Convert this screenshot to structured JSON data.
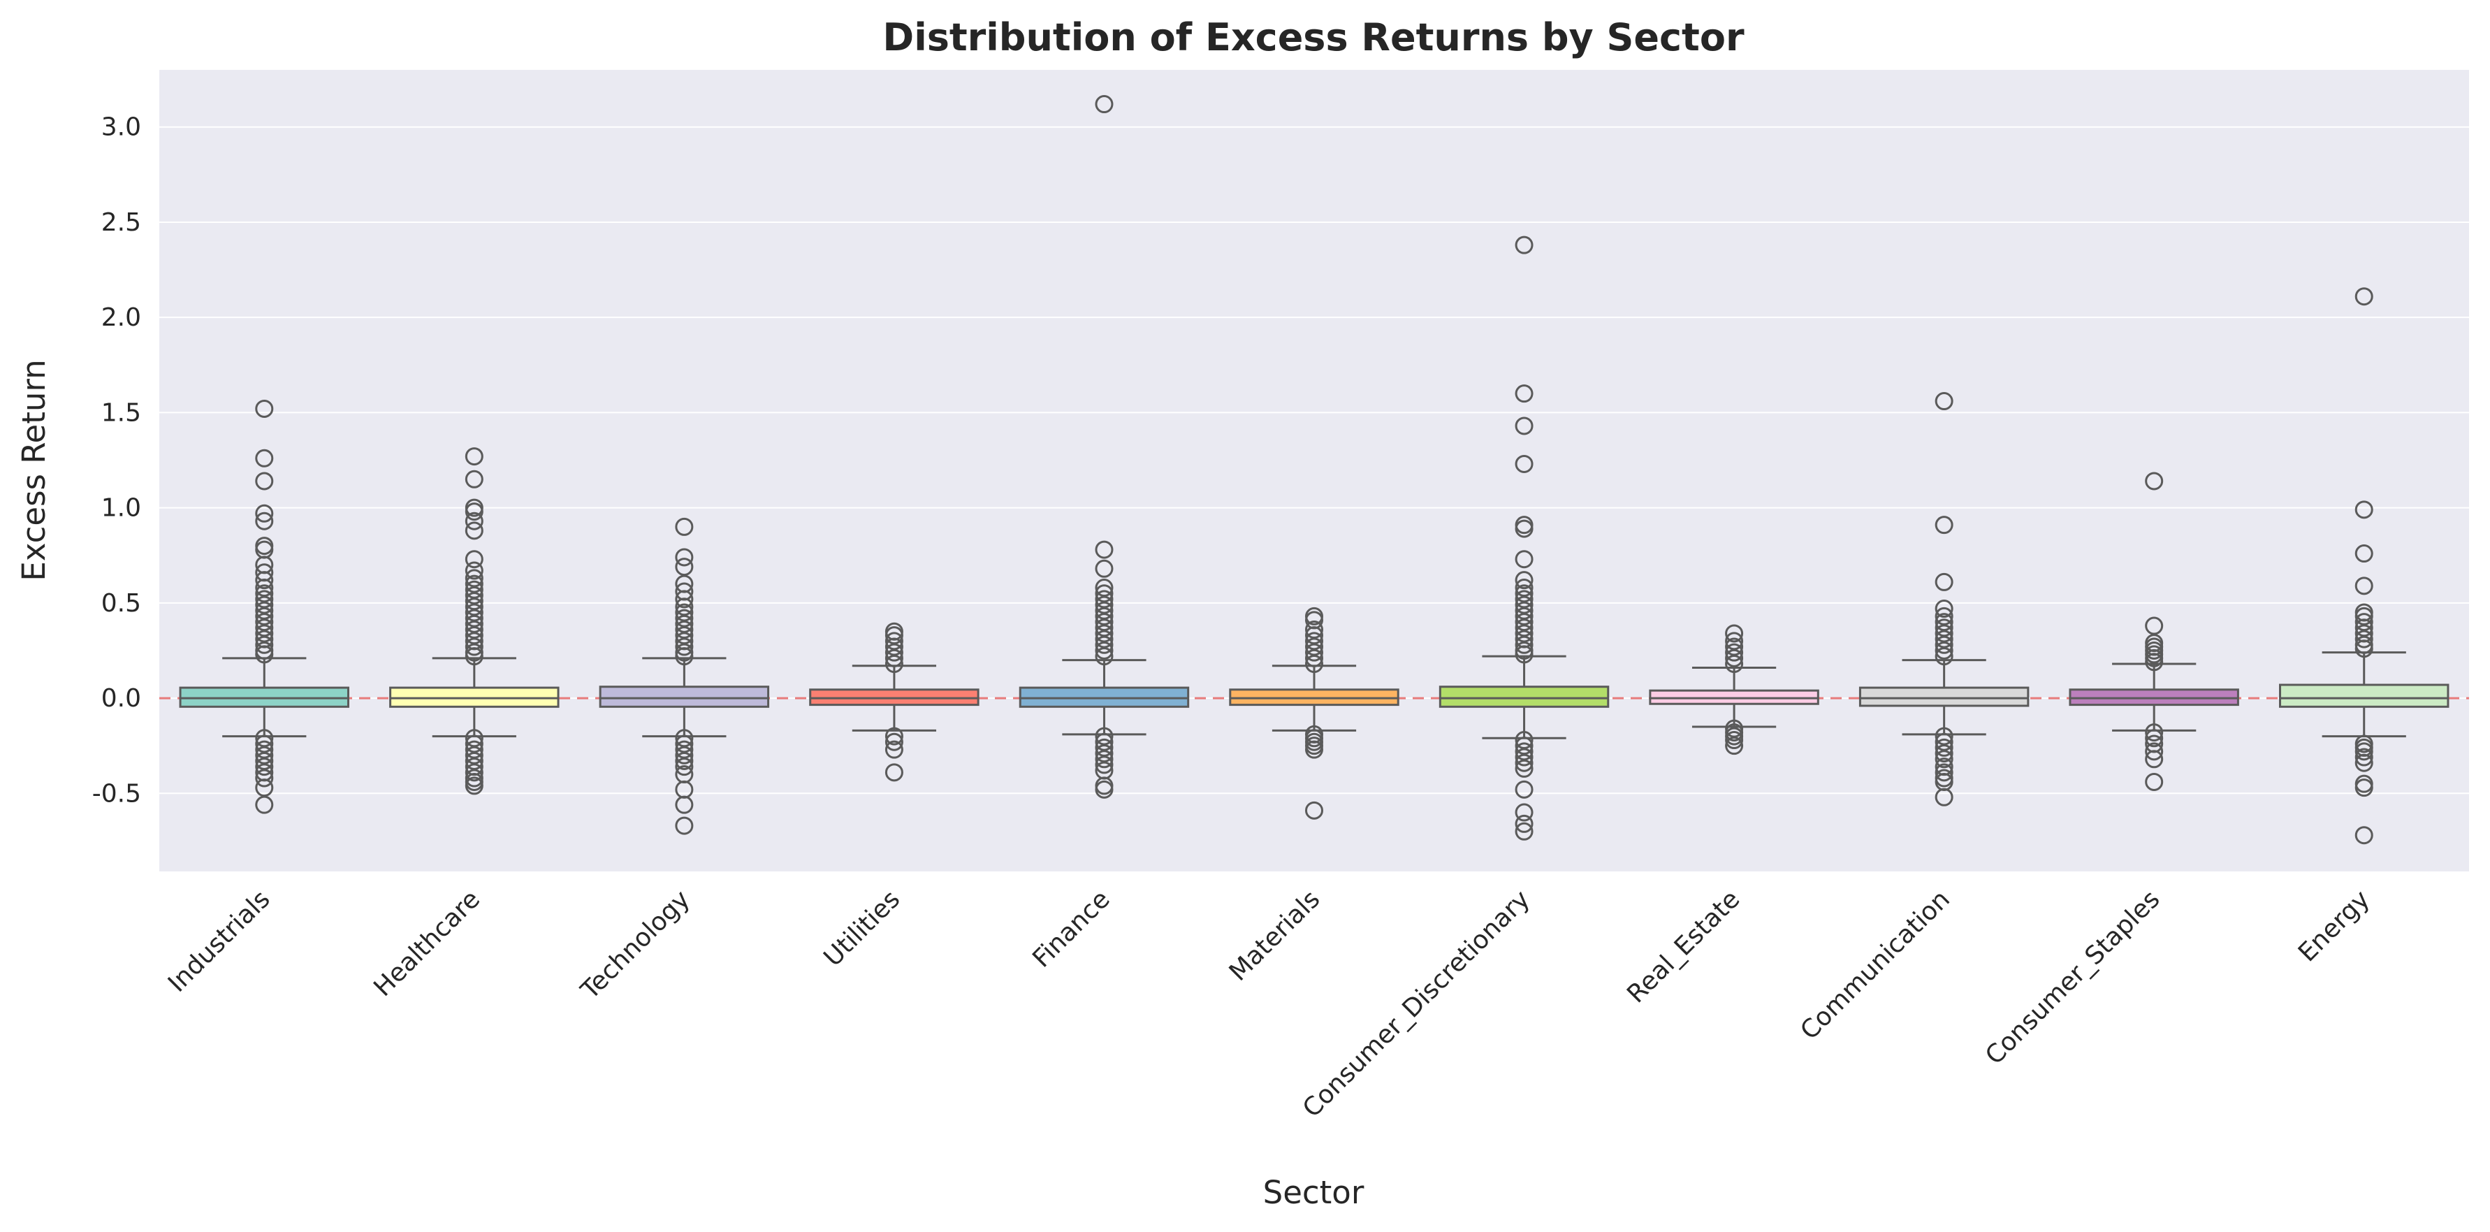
{
  "chart_data": {
    "type": "box",
    "title": "Distribution of Excess Returns by Sector",
    "xlabel": "Sector",
    "ylabel": "Excess Return",
    "ylim": [
      -0.91,
      3.3
    ],
    "yticks": [
      "-0.5",
      "0.0",
      "0.5",
      "1.0",
      "1.5",
      "2.0",
      "2.5",
      "3.0"
    ],
    "ytick_values": [
      -0.5,
      0.0,
      0.5,
      1.0,
      1.5,
      2.0,
      2.5,
      3.0
    ],
    "grid": true,
    "reference_line": {
      "y": 0.0,
      "style": "dashed",
      "color": "#e87b7b"
    },
    "categories": [
      "Industrials",
      "Healthcare",
      "Technology",
      "Utilities",
      "Finance",
      "Materials",
      "Consumer_Discretionary",
      "Real_Estate",
      "Communication",
      "Consumer_Staples",
      "Energy"
    ],
    "colors": [
      "#8dd3c7",
      "#ffffb3",
      "#bebada",
      "#fb8072",
      "#80b1d3",
      "#fdb462",
      "#b3de69",
      "#fccde5",
      "#d9d9d9",
      "#bc80bd",
      "#ccebc5"
    ],
    "boxes": [
      {
        "q1": -0.045,
        "median": 0.0,
        "q3": 0.055,
        "whisker_low": -0.2,
        "whisker_high": 0.21,
        "outliers": [
          1.52,
          1.26,
          1.14,
          0.97,
          0.93,
          0.8,
          0.78,
          0.7,
          0.66,
          0.62,
          0.58,
          0.55,
          0.52,
          0.49,
          0.46,
          0.43,
          0.4,
          0.37,
          0.34,
          0.31,
          0.28,
          0.25,
          0.23,
          -0.21,
          -0.24,
          -0.27,
          -0.3,
          -0.33,
          -0.36,
          -0.39,
          -0.42,
          -0.47,
          -0.56
        ]
      },
      {
        "q1": -0.045,
        "median": 0.0,
        "q3": 0.055,
        "whisker_low": -0.2,
        "whisker_high": 0.21,
        "outliers": [
          1.27,
          1.15,
          1.0,
          0.98,
          0.93,
          0.88,
          0.73,
          0.67,
          0.63,
          0.6,
          0.57,
          0.54,
          0.51,
          0.48,
          0.45,
          0.42,
          0.39,
          0.36,
          0.33,
          0.3,
          0.27,
          0.24,
          0.22,
          -0.21,
          -0.24,
          -0.27,
          -0.3,
          -0.33,
          -0.36,
          -0.39,
          -0.42,
          -0.44,
          -0.46
        ]
      },
      {
        "q1": -0.045,
        "median": 0.0,
        "q3": 0.06,
        "whisker_low": -0.2,
        "whisker_high": 0.21,
        "outliers": [
          0.9,
          0.74,
          0.69,
          0.6,
          0.56,
          0.52,
          0.48,
          0.45,
          0.42,
          0.39,
          0.36,
          0.33,
          0.3,
          0.27,
          0.24,
          0.22,
          -0.21,
          -0.24,
          -0.27,
          -0.3,
          -0.33,
          -0.36,
          -0.4,
          -0.48,
          -0.56,
          -0.67
        ]
      },
      {
        "q1": -0.035,
        "median": 0.0,
        "q3": 0.045,
        "whisker_low": -0.17,
        "whisker_high": 0.17,
        "outliers": [
          0.35,
          0.33,
          0.3,
          0.27,
          0.24,
          0.21,
          0.18,
          -0.2,
          -0.23,
          -0.27,
          -0.39
        ]
      },
      {
        "q1": -0.045,
        "median": 0.0,
        "q3": 0.055,
        "whisker_low": -0.19,
        "whisker_high": 0.2,
        "outliers": [
          3.12,
          0.78,
          0.68,
          0.58,
          0.55,
          0.52,
          0.49,
          0.46,
          0.43,
          0.4,
          0.37,
          0.34,
          0.31,
          0.28,
          0.25,
          0.22,
          -0.2,
          -0.23,
          -0.26,
          -0.29,
          -0.32,
          -0.35,
          -0.38,
          -0.46,
          -0.48
        ]
      },
      {
        "q1": -0.035,
        "median": 0.0,
        "q3": 0.045,
        "whisker_low": -0.17,
        "whisker_high": 0.17,
        "outliers": [
          0.43,
          0.41,
          0.36,
          0.33,
          0.3,
          0.27,
          0.24,
          0.21,
          0.18,
          -0.19,
          -0.21,
          -0.23,
          -0.25,
          -0.27,
          -0.59
        ]
      },
      {
        "q1": -0.045,
        "median": 0.0,
        "q3": 0.06,
        "whisker_low": -0.21,
        "whisker_high": 0.22,
        "outliers": [
          2.38,
          1.6,
          1.43,
          1.23,
          0.91,
          0.89,
          0.73,
          0.62,
          0.58,
          0.55,
          0.52,
          0.49,
          0.46,
          0.43,
          0.4,
          0.37,
          0.34,
          0.31,
          0.28,
          0.25,
          0.23,
          -0.22,
          -0.25,
          -0.28,
          -0.31,
          -0.34,
          -0.37,
          -0.48,
          -0.6,
          -0.66,
          -0.7
        ]
      },
      {
        "q1": -0.03,
        "median": 0.0,
        "q3": 0.04,
        "whisker_low": -0.15,
        "whisker_high": 0.16,
        "outliers": [
          0.34,
          0.3,
          0.27,
          0.24,
          0.21,
          0.18,
          -0.16,
          -0.18,
          -0.2,
          -0.22,
          -0.25
        ]
      },
      {
        "q1": -0.04,
        "median": 0.0,
        "q3": 0.055,
        "whisker_low": -0.19,
        "whisker_high": 0.2,
        "outliers": [
          1.56,
          0.91,
          0.61,
          0.47,
          0.43,
          0.4,
          0.37,
          0.34,
          0.31,
          0.28,
          0.25,
          0.22,
          -0.2,
          -0.23,
          -0.26,
          -0.29,
          -0.32,
          -0.36,
          -0.39,
          -0.42,
          -0.44,
          -0.52
        ]
      },
      {
        "q1": -0.035,
        "median": 0.0,
        "q3": 0.045,
        "whisker_low": -0.17,
        "whisker_high": 0.18,
        "outliers": [
          1.14,
          0.38,
          0.29,
          0.27,
          0.25,
          0.23,
          0.21,
          0.19,
          -0.18,
          -0.21,
          -0.24,
          -0.28,
          -0.32,
          -0.44
        ]
      },
      {
        "q1": -0.045,
        "median": 0.0,
        "q3": 0.07,
        "whisker_low": -0.2,
        "whisker_high": 0.24,
        "outliers": [
          2.11,
          0.99,
          0.76,
          0.59,
          0.45,
          0.43,
          0.4,
          0.37,
          0.34,
          0.31,
          0.28,
          0.26,
          -0.24,
          -0.26,
          -0.28,
          -0.31,
          -0.34,
          -0.45,
          -0.47,
          -0.72
        ]
      }
    ]
  }
}
